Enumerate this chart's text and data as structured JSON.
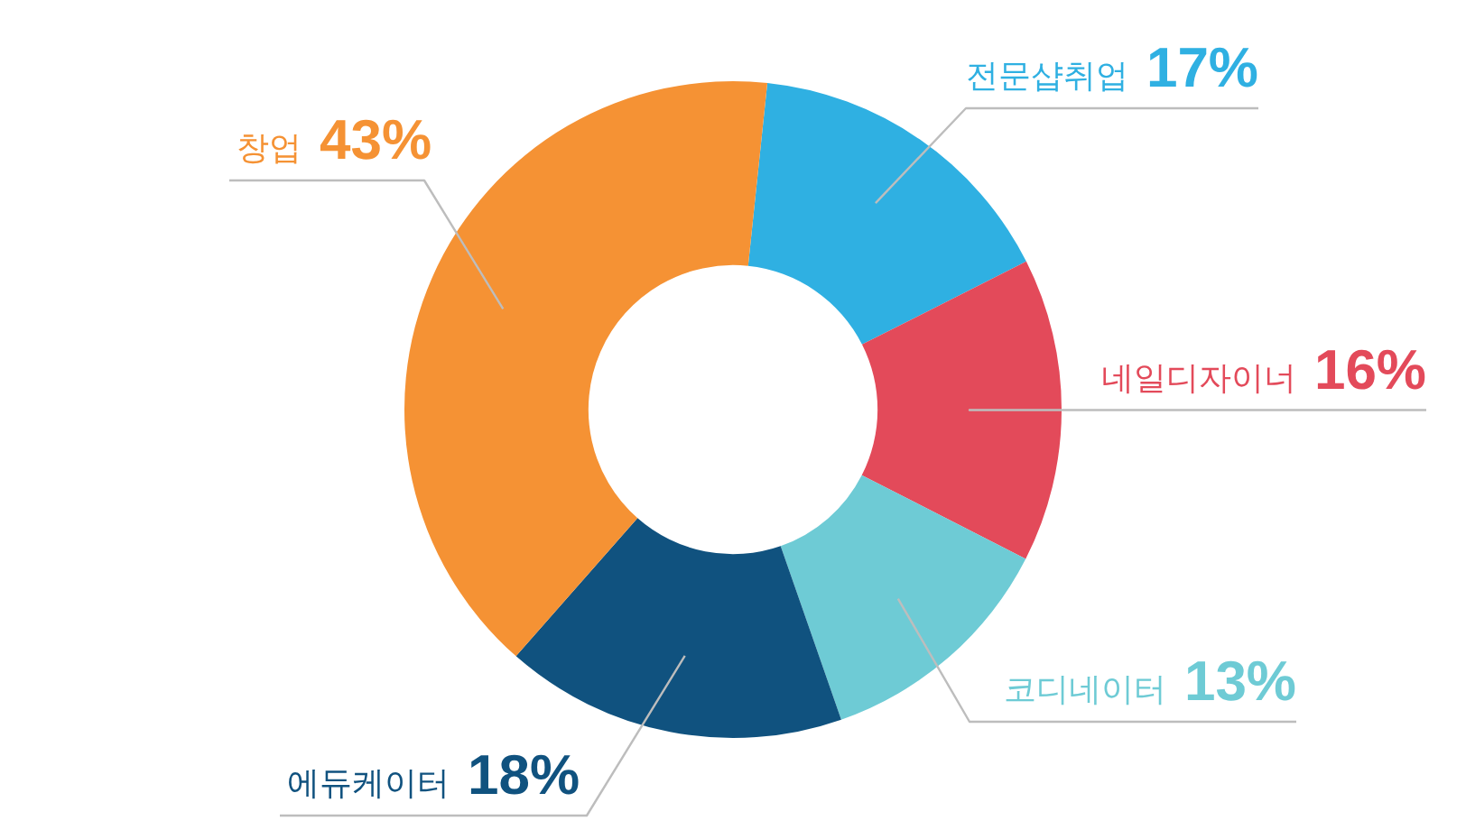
{
  "chart_data": {
    "type": "donut",
    "categories": [
      "전문샵취업",
      "네일디자이너",
      "코디네이터",
      "에듀케이터",
      "창업"
    ],
    "values": [
      17,
      16,
      13,
      18,
      43
    ],
    "colors": [
      "#2fb0e2",
      "#e34a5a",
      "#6ecbd5",
      "#10527f",
      "#f59234"
    ],
    "value_labels": [
      "17%",
      "16%",
      "13%",
      "18%",
      "43%"
    ]
  }
}
